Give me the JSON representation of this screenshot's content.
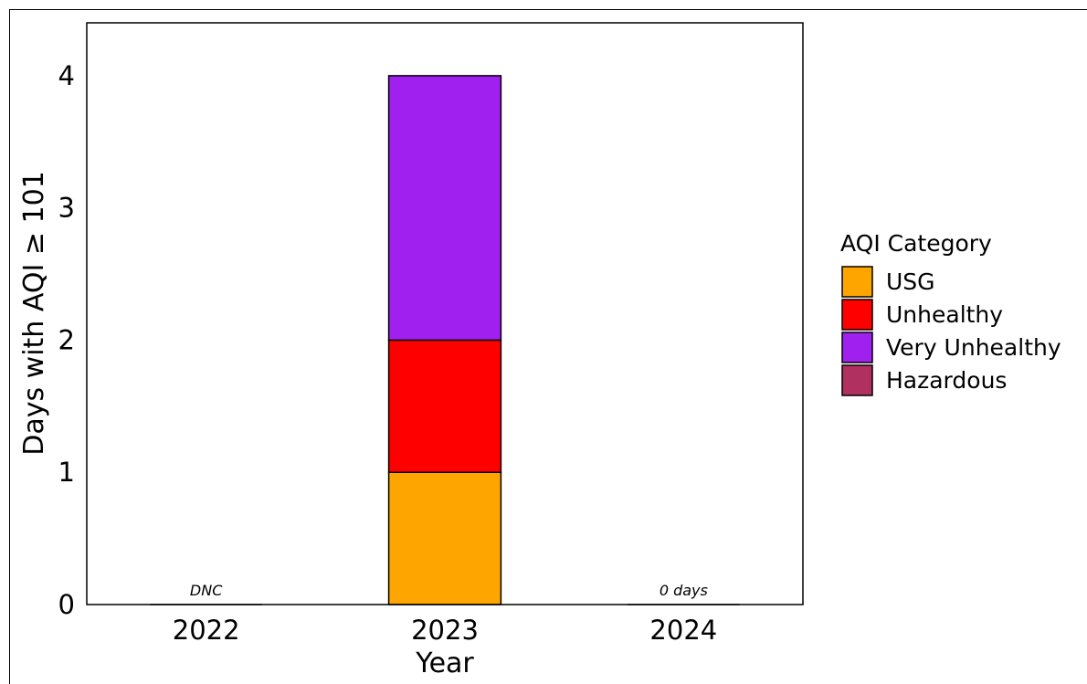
{
  "chart_data": {
    "type": "bar",
    "stacked": true,
    "categories": [
      "2022",
      "2023",
      "2024"
    ],
    "series": [
      {
        "name": "USG",
        "values": [
          0,
          1,
          0
        ],
        "color": "#FFA500"
      },
      {
        "name": "Unhealthy",
        "values": [
          0,
          1,
          0
        ],
        "color": "#FF0000"
      },
      {
        "name": "Very Unhealthy",
        "values": [
          0,
          2,
          0
        ],
        "color": "#A020F0"
      },
      {
        "name": "Hazardous",
        "values": [
          0,
          0,
          0
        ],
        "color": "#B03060"
      }
    ],
    "annotations": [
      {
        "category": "2022",
        "text": "DNC"
      },
      {
        "category": "2024",
        "text": "0 days"
      }
    ],
    "xlabel": "Year",
    "ylabel": "Days with AQI ≥ 101",
    "yticks": [
      0,
      1,
      2,
      3,
      4
    ],
    "ylim": [
      0,
      4.4
    ],
    "grid": false,
    "legend": {
      "title": "AQI Category",
      "placement": "right"
    }
  }
}
